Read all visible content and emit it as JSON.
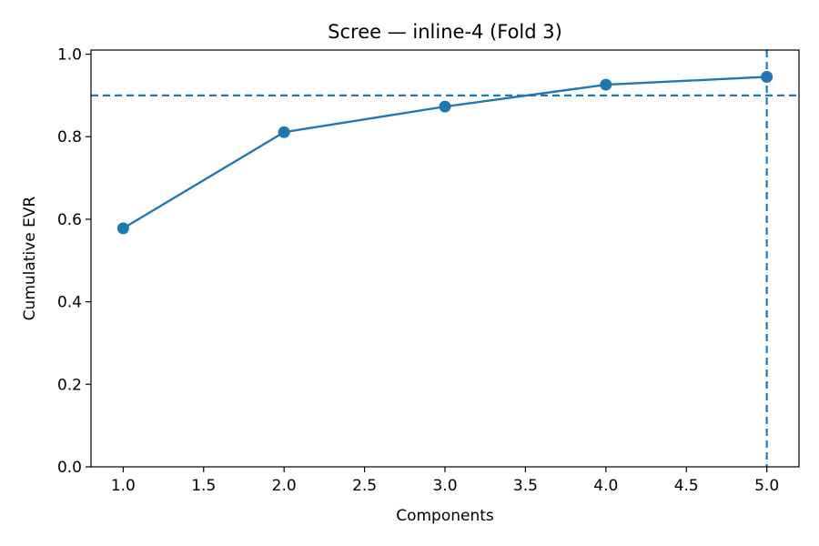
{
  "chart_data": {
    "type": "line",
    "title": "Scree — inline-4 (Fold 3)",
    "xlabel": "Components",
    "ylabel": "Cumulative EVR",
    "xlim": [
      0.8,
      5.2
    ],
    "ylim": [
      0.0,
      1.01
    ],
    "x_ticks": [
      "1.0",
      "1.5",
      "2.0",
      "2.5",
      "3.0",
      "3.5",
      "4.0",
      "4.5",
      "5.0"
    ],
    "y_ticks": [
      "0.0",
      "0.2",
      "0.4",
      "0.6",
      "0.8",
      "1.0"
    ],
    "grid": false,
    "series": [
      {
        "x": [
          1,
          2,
          3,
          4,
          5
        ],
        "values": [
          0.578,
          0.811,
          0.873,
          0.926,
          0.945
        ],
        "color": "#1f77b4",
        "marker": "circle"
      }
    ],
    "reference_lines": [
      {
        "orientation": "horizontal",
        "value": 0.9,
        "style": "dashed",
        "color": "#1f77b4"
      },
      {
        "orientation": "vertical",
        "value": 5.0,
        "style": "dashed",
        "color": "#1f77b4"
      }
    ]
  }
}
